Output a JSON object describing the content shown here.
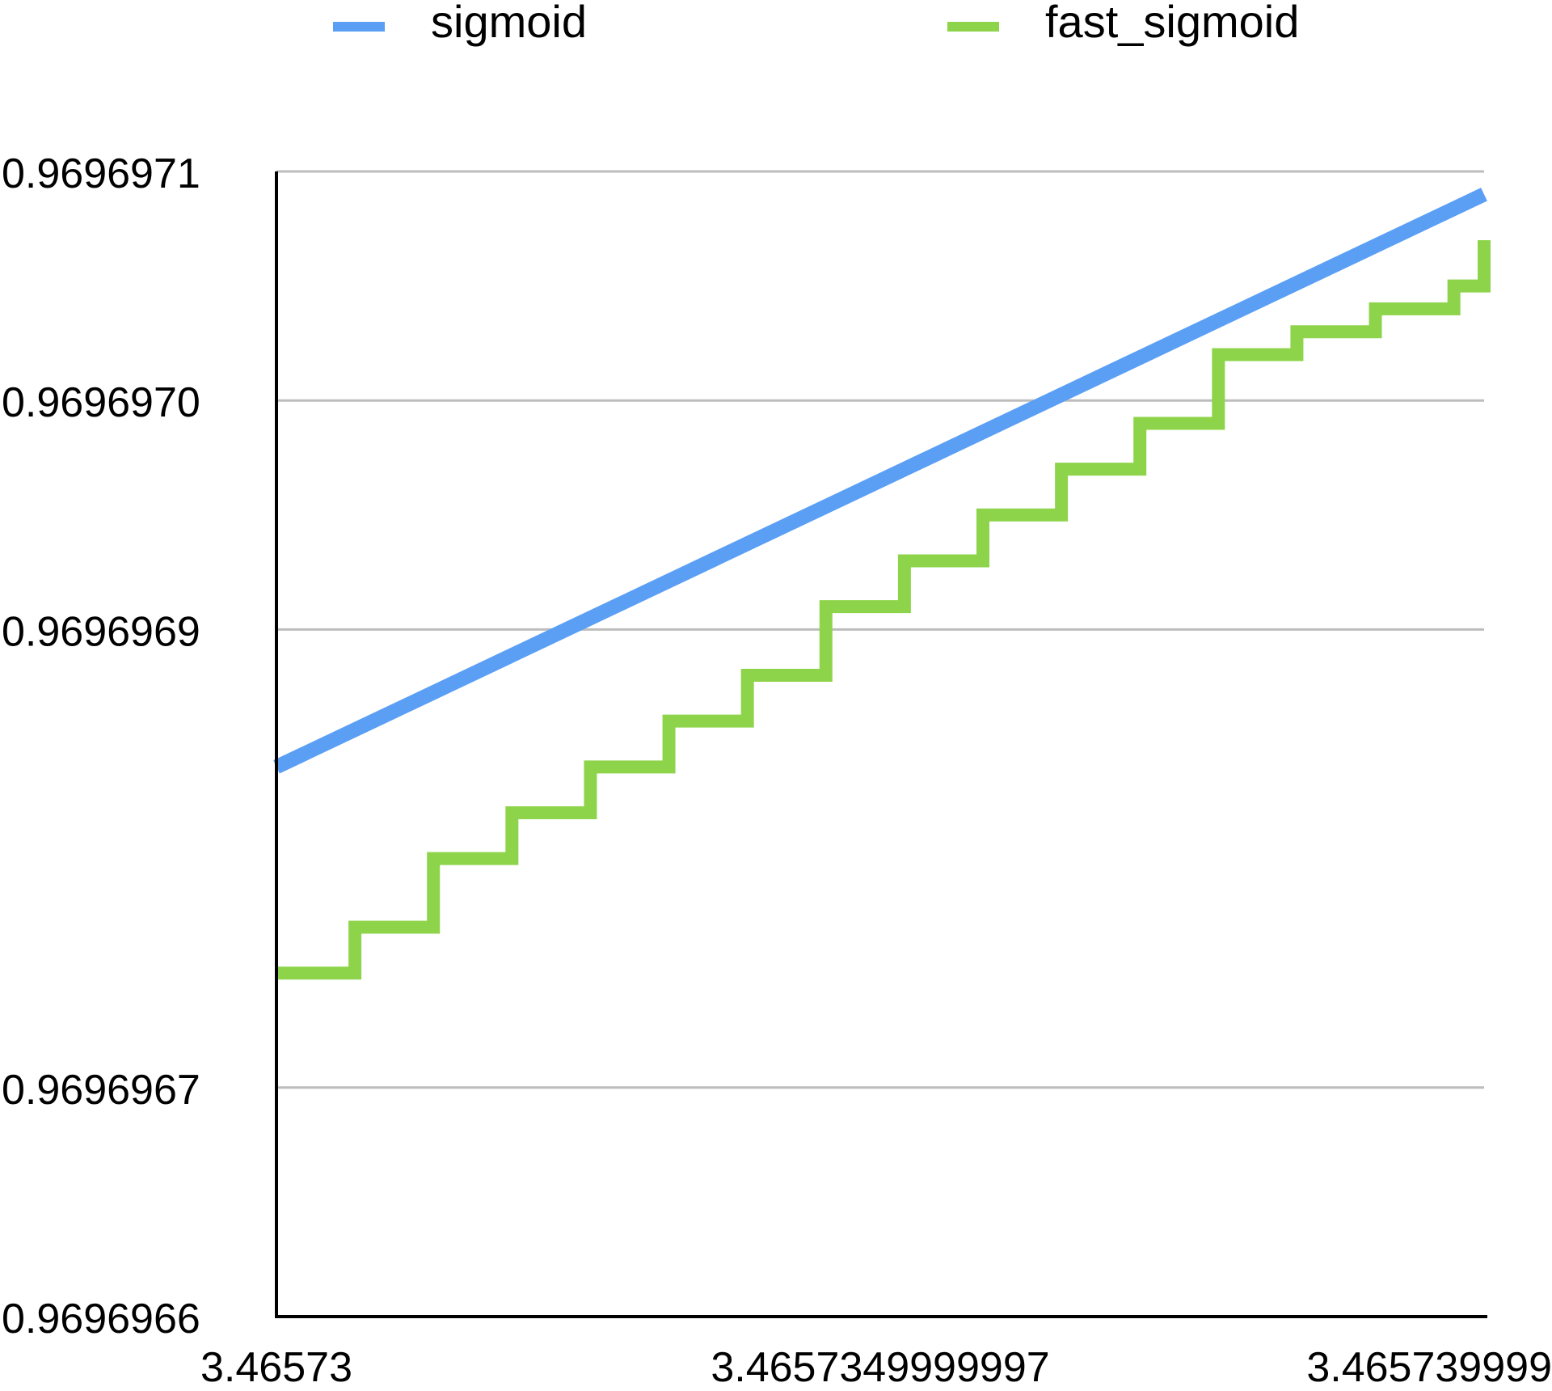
{
  "chart_data": {
    "type": "line",
    "title": "",
    "xlabel": "",
    "ylabel": "",
    "xlim": [
      3.46573,
      3.46574
    ],
    "ylim": [
      0.9696966,
      0.9696971
    ],
    "x_tick_labels": [
      {
        "x": 3.46573,
        "label": "3.46573"
      },
      {
        "x": 3.465735,
        "label": "3.4657349999997"
      },
      {
        "x": 3.46574,
        "label": "3.465739999"
      }
    ],
    "y_tick_labels": [
      {
        "y": 0.9696966,
        "label": "0.9696966"
      },
      {
        "y": 0.9696967,
        "label": "0.9696967"
      },
      {
        "y": 0.9696969,
        "label": "0.9696969"
      },
      {
        "y": 0.969697,
        "label": "0.9696970"
      },
      {
        "y": 0.9696971,
        "label": "0.9696971"
      }
    ],
    "grid": true,
    "legend": {
      "position": "top"
    },
    "series": [
      {
        "name": "sigmoid",
        "color": "#5B9FF5",
        "style": "line",
        "x": [
          3.46573,
          3.46574
        ],
        "y": [
          0.96969684,
          0.96969709
        ]
      },
      {
        "name": "fast_sigmoid",
        "color": "#8ED44A",
        "style": "step",
        "x": [
          3.46573,
          3.46573065,
          3.4657313,
          3.46573195,
          3.4657326,
          3.46573325,
          3.4657339,
          3.46573455,
          3.4657352,
          3.46573585,
          3.4657365,
          3.46573715,
          3.4657378,
          3.46573845,
          3.4657391,
          3.46573975,
          3.46574
        ],
        "y": [
          0.96969675,
          0.96969677,
          0.9696968,
          0.96969682,
          0.96969684,
          0.96969686,
          0.96969688,
          0.96969691,
          0.96969693,
          0.96969695,
          0.96969697,
          0.96969699,
          0.96969702,
          0.96969703,
          0.96969704,
          0.96969705,
          0.96969707
        ]
      }
    ]
  }
}
